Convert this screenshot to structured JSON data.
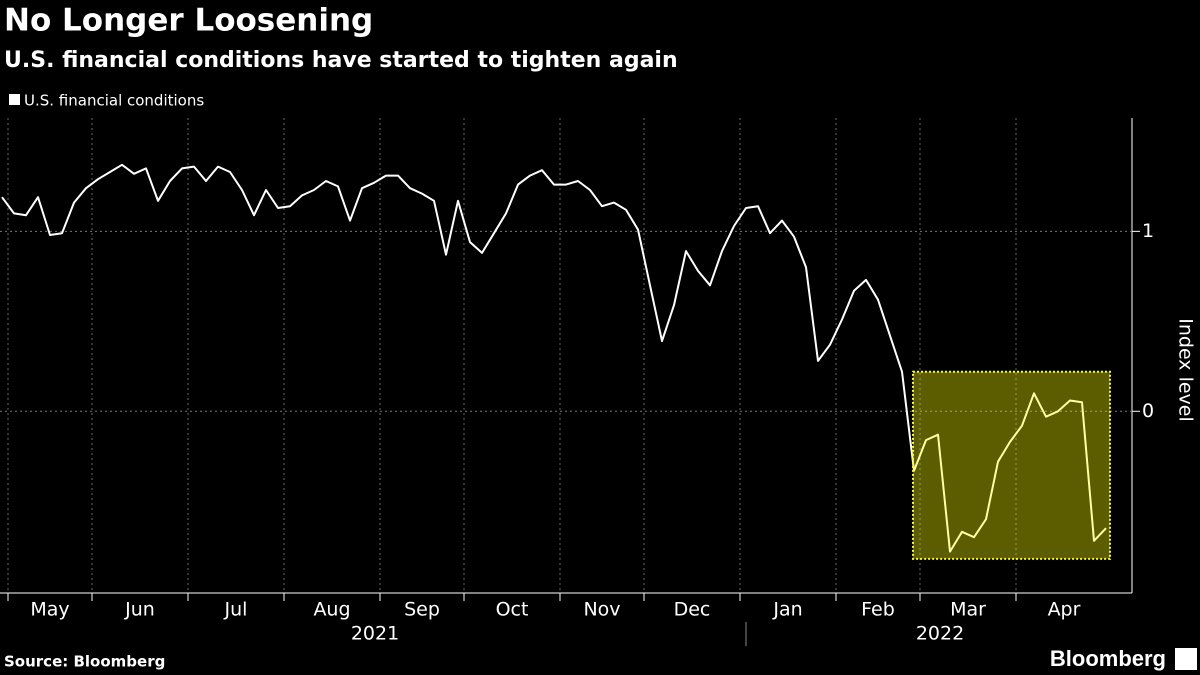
{
  "chart_data": {
    "type": "line",
    "title": "No Longer Loosening",
    "subtitle": "U.S. financial conditions have started to tighten again",
    "y_label": "Index level",
    "source": "Source: Bloomberg",
    "brand": "Bloomberg",
    "year_labels": [
      "2021",
      "2022"
    ],
    "categories": [
      null,
      "May",
      null,
      null,
      null,
      null,
      null,
      null,
      "Jun",
      null,
      null,
      null,
      null,
      null,
      null,
      null,
      "Jul",
      null,
      null,
      null,
      null,
      null,
      null,
      null,
      "Aug",
      null,
      null,
      null,
      null,
      null,
      null,
      null,
      "Sep",
      null,
      null,
      null,
      null,
      null,
      null,
      "Oct",
      null,
      null,
      null,
      null,
      null,
      null,
      null,
      "Nov",
      null,
      null,
      null,
      null,
      null,
      null,
      "Dec",
      null,
      null,
      null,
      null,
      null,
      null,
      null,
      "Jan",
      null,
      null,
      null,
      null,
      null,
      null,
      null,
      "Feb",
      null,
      null,
      null,
      null,
      null,
      null,
      "Mar",
      null,
      null,
      null,
      null,
      null,
      null,
      null,
      "Apr",
      null,
      null,
      null,
      null,
      null,
      null,
      null
    ],
    "series": [
      {
        "name": "U.S. financial conditions",
        "color": "#ffffff",
        "values": [
          1.19,
          1.1,
          1.09,
          1.19,
          0.98,
          0.99,
          1.16,
          1.24,
          1.29,
          1.33,
          1.37,
          1.32,
          1.35,
          1.17,
          1.28,
          1.35,
          1.36,
          1.28,
          1.36,
          1.33,
          1.23,
          1.09,
          1.23,
          1.13,
          1.14,
          1.2,
          1.23,
          1.28,
          1.25,
          1.06,
          1.24,
          1.27,
          1.31,
          1.31,
          1.24,
          1.21,
          1.17,
          0.87,
          1.17,
          0.94,
          0.88,
          0.99,
          1.1,
          1.26,
          1.31,
          1.34,
          1.26,
          1.26,
          1.28,
          1.23,
          1.14,
          1.16,
          1.12,
          1.01,
          0.7,
          0.39,
          0.59,
          0.89,
          0.78,
          0.7,
          0.89,
          1.03,
          1.13,
          1.14,
          0.99,
          1.06,
          0.97,
          0.8,
          0.28,
          0.37,
          0.51,
          0.67,
          0.73,
          0.62,
          0.42,
          0.22,
          -0.33,
          -0.16,
          -0.13,
          -0.78,
          -0.67,
          -0.7,
          -0.6,
          -0.28,
          -0.17,
          -0.08,
          0.1,
          -0.03,
          0.0,
          0.06,
          0.05,
          -0.72,
          -0.65
        ]
      }
    ],
    "ylim": [
      -1.01,
      1.63
    ],
    "yticks": [
      0,
      1
    ],
    "grid": true,
    "highlight": {
      "ylim": [
        -0.82,
        0.22
      ],
      "color": "#ffff00"
    }
  }
}
